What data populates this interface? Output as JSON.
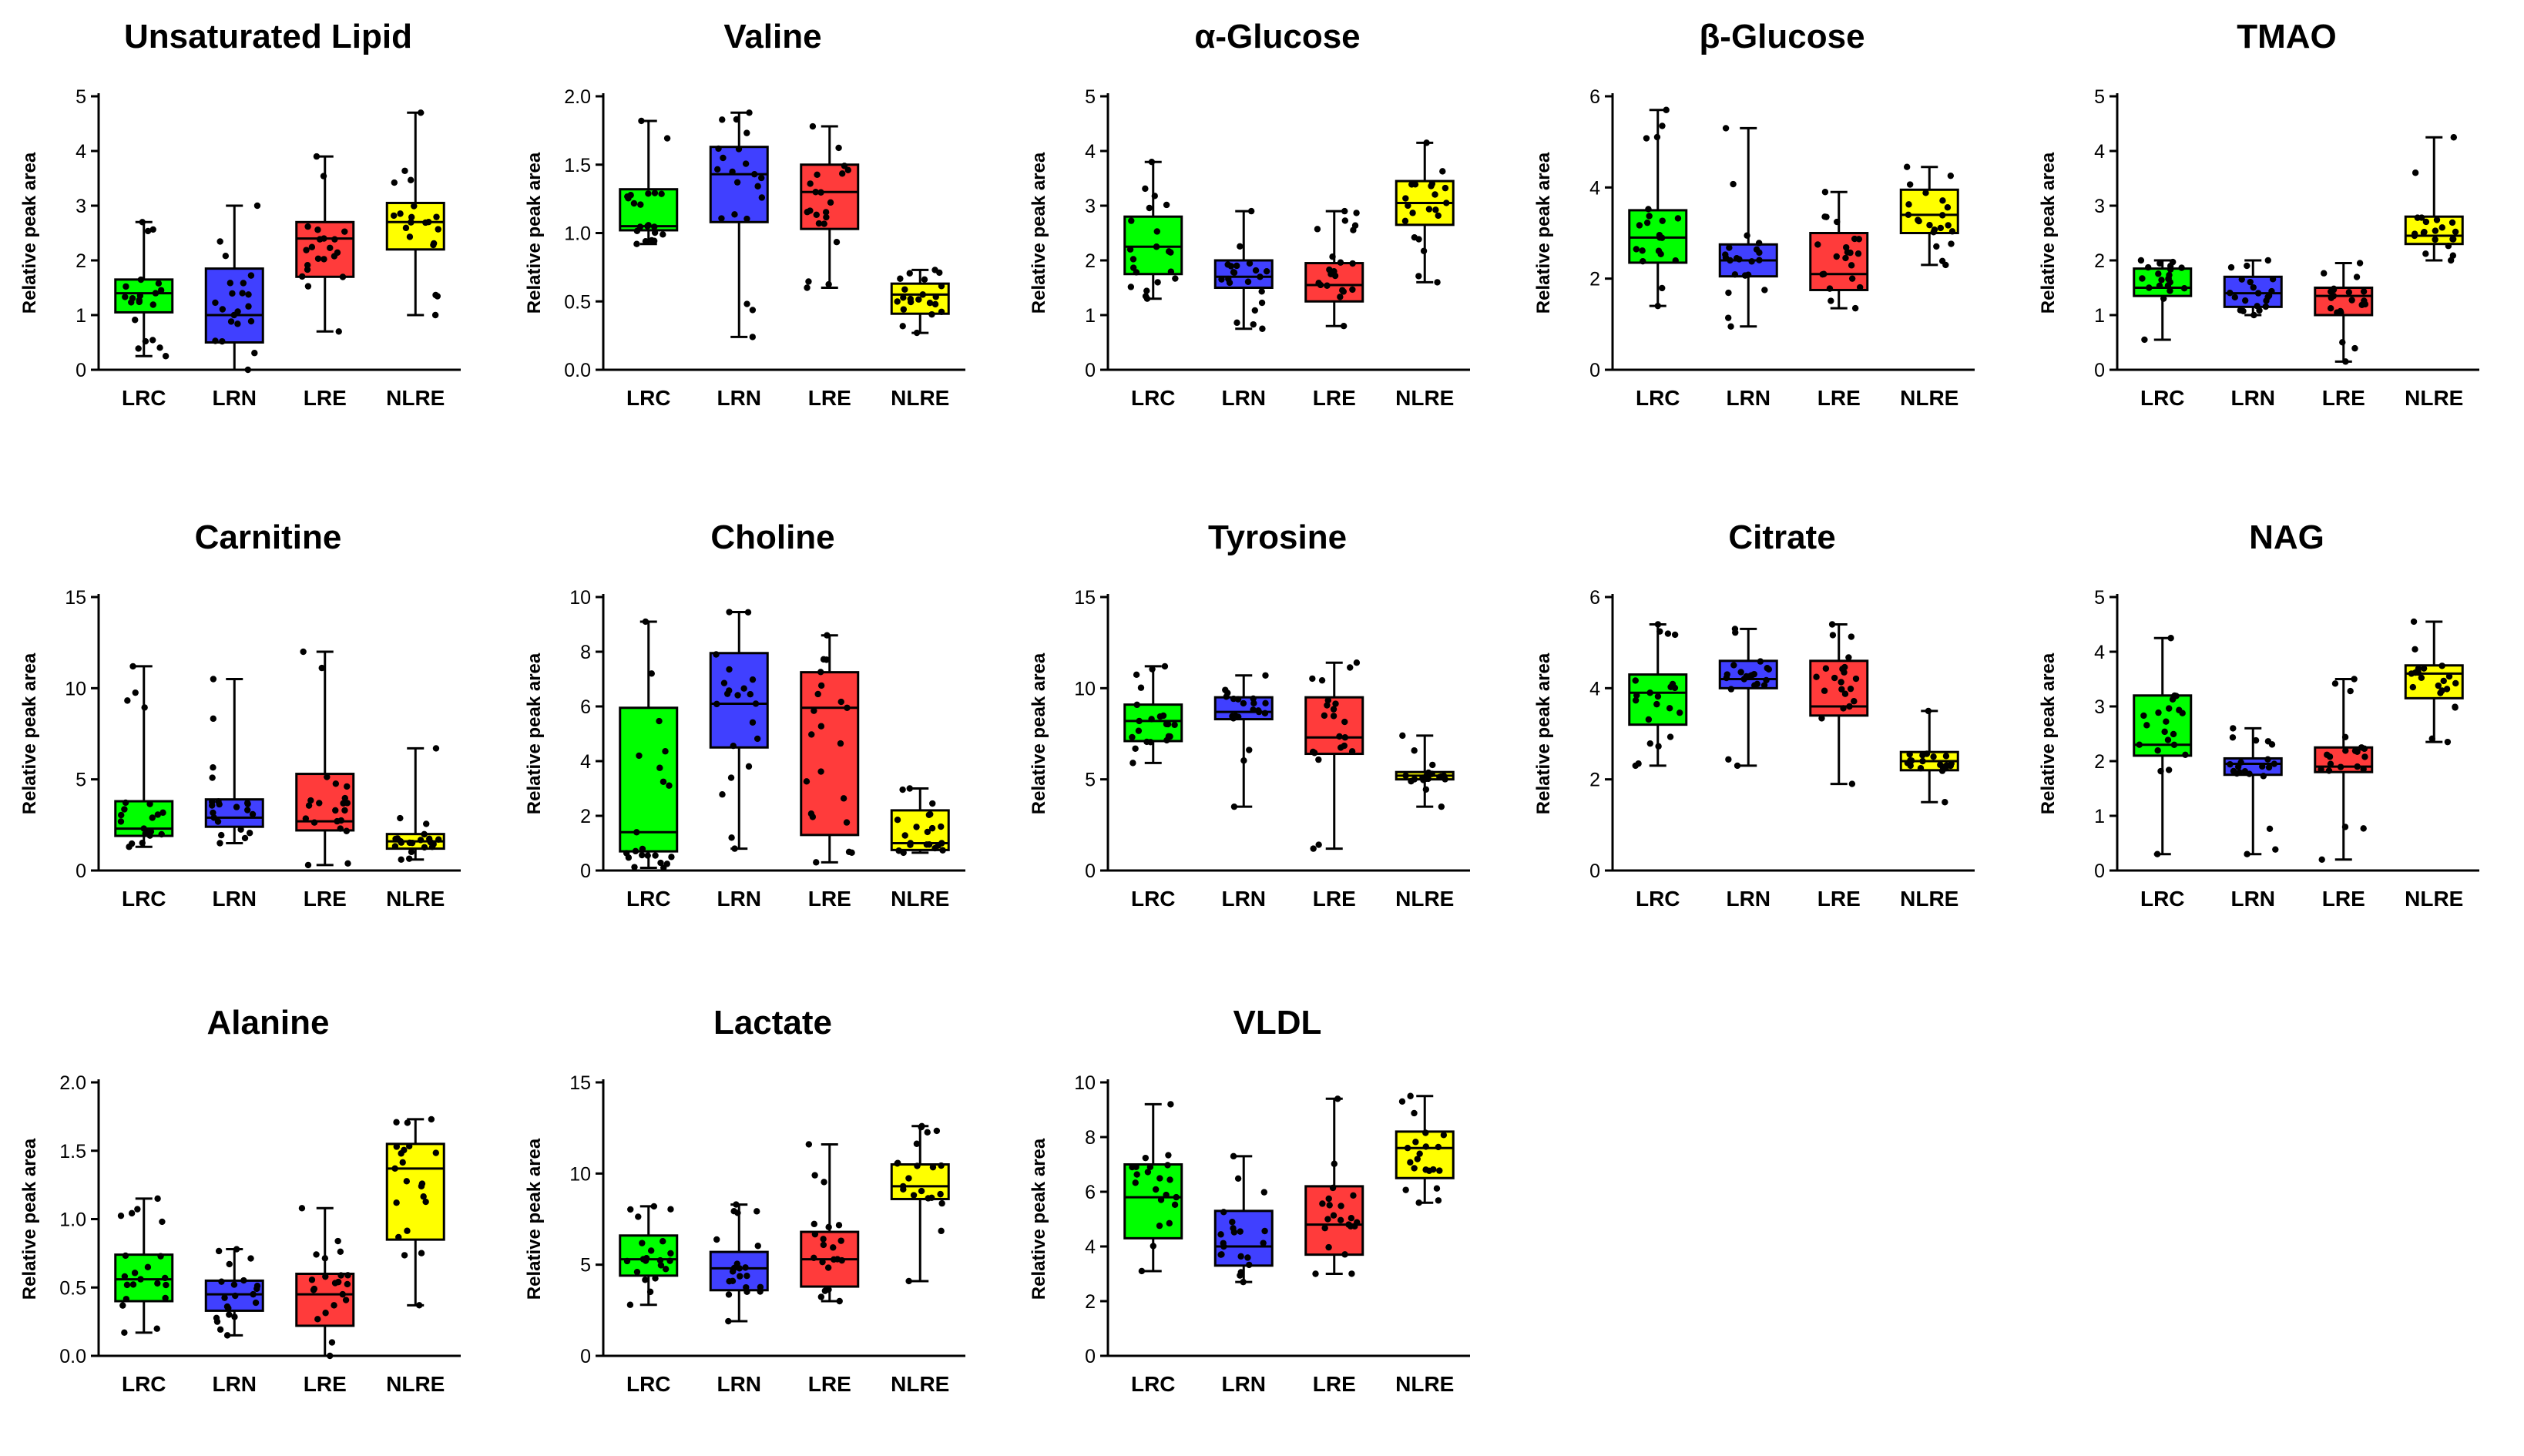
{
  "figure": {
    "y_axis_label": "Relative peak area",
    "groups": [
      "LRC",
      "LRN",
      "LRE",
      "NLRE"
    ],
    "colors": {
      "LRC": "#00ff00",
      "LRN": "#4040ff",
      "LRE": "#ff3b3b",
      "NLRE": "#ffff00"
    }
  },
  "chart_data": [
    {
      "type": "box",
      "title": "Unsaturated Lipid",
      "ylabel": "Relative peak area",
      "ylim": [
        0,
        5
      ],
      "yticks": [
        0,
        1,
        2,
        3,
        4,
        5
      ],
      "categories": [
        "LRC",
        "LRN",
        "LRE",
        "NLRE"
      ],
      "boxes": [
        {
          "min": 0.25,
          "q1": 1.05,
          "median": 1.4,
          "q3": 1.65,
          "max": 2.7
        },
        {
          "min": 0.0,
          "q1": 0.5,
          "median": 1.0,
          "q3": 1.85,
          "max": 3.0
        },
        {
          "min": 0.7,
          "q1": 1.7,
          "median": 2.4,
          "q3": 2.7,
          "max": 3.9
        },
        {
          "min": 1.0,
          "q1": 2.2,
          "median": 2.7,
          "q3": 3.05,
          "max": 4.7
        }
      ]
    },
    {
      "type": "box",
      "title": "Valine",
      "ylabel": "Relative peak area",
      "ylim": [
        0,
        2
      ],
      "yticks": [
        0.0,
        0.5,
        1.0,
        1.5,
        2.0
      ],
      "categories": [
        "LRC",
        "LRN",
        "LRE",
        "NLRE"
      ],
      "boxes": [
        {
          "min": 0.92,
          "q1": 1.02,
          "median": 1.05,
          "q3": 1.32,
          "max": 1.82
        },
        {
          "min": 0.24,
          "q1": 1.08,
          "median": 1.43,
          "q3": 1.63,
          "max": 1.88
        },
        {
          "min": 0.6,
          "q1": 1.03,
          "median": 1.3,
          "q3": 1.5,
          "max": 1.78
        },
        {
          "min": 0.27,
          "q1": 0.41,
          "median": 0.55,
          "q3": 0.63,
          "max": 0.73
        }
      ]
    },
    {
      "type": "box",
      "title": "α-Glucose",
      "ylabel": "Relative peak area",
      "ylim": [
        0,
        5
      ],
      "yticks": [
        0,
        1,
        2,
        3,
        4,
        5
      ],
      "categories": [
        "LRC",
        "LRN",
        "LRE",
        "NLRE"
      ],
      "boxes": [
        {
          "min": 1.3,
          "q1": 1.75,
          "median": 2.25,
          "q3": 2.8,
          "max": 3.8
        },
        {
          "min": 0.75,
          "q1": 1.5,
          "median": 1.7,
          "q3": 2.0,
          "max": 2.9
        },
        {
          "min": 0.8,
          "q1": 1.25,
          "median": 1.55,
          "q3": 1.95,
          "max": 2.9
        },
        {
          "min": 1.6,
          "q1": 2.65,
          "median": 3.05,
          "q3": 3.45,
          "max": 4.15
        }
      ]
    },
    {
      "type": "box",
      "title": "β-Glucose",
      "ylabel": "Relative peak area",
      "ylim": [
        0,
        6
      ],
      "yticks": [
        0,
        2,
        4,
        6
      ],
      "categories": [
        "LRC",
        "LRN",
        "LRE",
        "NLRE"
      ],
      "boxes": [
        {
          "min": 1.4,
          "q1": 2.35,
          "median": 2.9,
          "q3": 3.5,
          "max": 5.7
        },
        {
          "min": 0.95,
          "q1": 2.05,
          "median": 2.4,
          "q3": 2.75,
          "max": 5.3
        },
        {
          "min": 1.35,
          "q1": 1.75,
          "median": 2.1,
          "q3": 3.0,
          "max": 3.9
        },
        {
          "min": 2.3,
          "q1": 3.0,
          "median": 3.4,
          "q3": 3.95,
          "max": 4.45
        }
      ]
    },
    {
      "type": "box",
      "title": "TMAO",
      "ylabel": "Relative peak area",
      "ylim": [
        0,
        5
      ],
      "yticks": [
        0,
        1,
        2,
        3,
        4,
        5
      ],
      "categories": [
        "LRC",
        "LRN",
        "LRE",
        "NLRE"
      ],
      "boxes": [
        {
          "min": 0.55,
          "q1": 1.35,
          "median": 1.5,
          "q3": 1.85,
          "max": 2.0
        },
        {
          "min": 1.0,
          "q1": 1.15,
          "median": 1.4,
          "q3": 1.7,
          "max": 2.0
        },
        {
          "min": 0.15,
          "q1": 1.0,
          "median": 1.35,
          "q3": 1.5,
          "max": 1.95
        },
        {
          "min": 2.0,
          "q1": 2.3,
          "median": 2.45,
          "q3": 2.8,
          "max": 4.25
        }
      ]
    },
    {
      "type": "box",
      "title": "Carnitine",
      "ylabel": "Relative peak area",
      "ylim": [
        0,
        15
      ],
      "yticks": [
        0,
        5,
        10,
        15
      ],
      "categories": [
        "LRC",
        "LRN",
        "LRE",
        "NLRE"
      ],
      "boxes": [
        {
          "min": 1.3,
          "q1": 1.9,
          "median": 2.3,
          "q3": 3.8,
          "max": 11.2
        },
        {
          "min": 1.5,
          "q1": 2.4,
          "median": 2.9,
          "q3": 3.9,
          "max": 10.5
        },
        {
          "min": 0.3,
          "q1": 2.2,
          "median": 2.7,
          "q3": 5.3,
          "max": 12.0
        },
        {
          "min": 0.6,
          "q1": 1.2,
          "median": 1.6,
          "q3": 2.0,
          "max": 6.7
        }
      ]
    },
    {
      "type": "box",
      "title": "Choline",
      "ylabel": "Relative peak area",
      "ylim": [
        0,
        10
      ],
      "yticks": [
        0,
        2,
        4,
        6,
        8,
        10
      ],
      "categories": [
        "LRC",
        "LRN",
        "LRE",
        "NLRE"
      ],
      "boxes": [
        {
          "min": 0.1,
          "q1": 0.7,
          "median": 1.4,
          "q3": 5.95,
          "max": 9.1
        },
        {
          "min": 0.8,
          "q1": 4.5,
          "median": 6.1,
          "q3": 7.95,
          "max": 9.45
        },
        {
          "min": 0.3,
          "q1": 1.3,
          "median": 5.95,
          "q3": 7.25,
          "max": 8.6
        },
        {
          "min": 0.65,
          "q1": 0.75,
          "median": 1.0,
          "q3": 2.2,
          "max": 3.0
        }
      ]
    },
    {
      "type": "box",
      "title": "Tyrosine",
      "ylabel": "Relative peak area",
      "ylim": [
        0,
        15
      ],
      "yticks": [
        0,
        5,
        10,
        15
      ],
      "categories": [
        "LRC",
        "LRN",
        "LRE",
        "NLRE"
      ],
      "boxes": [
        {
          "min": 5.9,
          "q1": 7.1,
          "median": 8.2,
          "q3": 9.1,
          "max": 11.2
        },
        {
          "min": 3.5,
          "q1": 8.3,
          "median": 8.7,
          "q3": 9.5,
          "max": 10.7
        },
        {
          "min": 1.2,
          "q1": 6.4,
          "median": 7.3,
          "q3": 9.5,
          "max": 11.4
        },
        {
          "min": 3.5,
          "q1": 5.0,
          "median": 5.2,
          "q3": 5.4,
          "max": 7.4
        }
      ]
    },
    {
      "type": "box",
      "title": "Citrate",
      "ylabel": "Relative peak area",
      "ylim": [
        0,
        6
      ],
      "yticks": [
        0,
        2,
        4,
        6
      ],
      "categories": [
        "LRC",
        "LRN",
        "LRE",
        "NLRE"
      ],
      "boxes": [
        {
          "min": 2.3,
          "q1": 3.2,
          "median": 3.9,
          "q3": 4.3,
          "max": 5.4
        },
        {
          "min": 2.3,
          "q1": 4.0,
          "median": 4.2,
          "q3": 4.6,
          "max": 5.3
        },
        {
          "min": 1.9,
          "q1": 3.4,
          "median": 3.6,
          "q3": 4.6,
          "max": 5.4
        },
        {
          "min": 1.5,
          "q1": 2.2,
          "median": 2.4,
          "q3": 2.6,
          "max": 3.5
        }
      ]
    },
    {
      "type": "box",
      "title": "NAG",
      "ylabel": "Relative peak area",
      "ylim": [
        0,
        5
      ],
      "yticks": [
        0,
        1,
        2,
        3,
        4,
        5
      ],
      "categories": [
        "LRC",
        "LRN",
        "LRE",
        "NLRE"
      ],
      "boxes": [
        {
          "min": 0.3,
          "q1": 2.1,
          "median": 2.3,
          "q3": 3.2,
          "max": 4.25
        },
        {
          "min": 0.3,
          "q1": 1.75,
          "median": 1.95,
          "q3": 2.05,
          "max": 2.6
        },
        {
          "min": 0.2,
          "q1": 1.8,
          "median": 1.9,
          "q3": 2.25,
          "max": 3.5
        },
        {
          "min": 2.35,
          "q1": 3.15,
          "median": 3.6,
          "q3": 3.75,
          "max": 4.55
        }
      ]
    },
    {
      "type": "box",
      "title": "Alanine",
      "ylabel": "Relative peak area",
      "ylim": [
        0,
        2
      ],
      "yticks": [
        0.0,
        0.5,
        1.0,
        1.5,
        2.0
      ],
      "categories": [
        "LRC",
        "LRN",
        "LRE",
        "NLRE"
      ],
      "boxes": [
        {
          "min": 0.17,
          "q1": 0.4,
          "median": 0.56,
          "q3": 0.74,
          "max": 1.15
        },
        {
          "min": 0.15,
          "q1": 0.33,
          "median": 0.45,
          "q3": 0.55,
          "max": 0.78
        },
        {
          "min": 0.0,
          "q1": 0.22,
          "median": 0.45,
          "q3": 0.6,
          "max": 1.08
        },
        {
          "min": 0.37,
          "q1": 0.85,
          "median": 1.37,
          "q3": 1.55,
          "max": 1.73
        }
      ]
    },
    {
      "type": "box",
      "title": "Lactate",
      "ylabel": "Relative peak area",
      "ylim": [
        0,
        15
      ],
      "yticks": [
        0,
        5,
        10,
        15
      ],
      "categories": [
        "LRC",
        "LRN",
        "LRE",
        "NLRE"
      ],
      "boxes": [
        {
          "min": 2.8,
          "q1": 4.4,
          "median": 5.3,
          "q3": 6.6,
          "max": 8.2
        },
        {
          "min": 1.9,
          "q1": 3.6,
          "median": 4.8,
          "q3": 5.7,
          "max": 8.3
        },
        {
          "min": 3.0,
          "q1": 3.8,
          "median": 5.3,
          "q3": 6.8,
          "max": 11.6
        },
        {
          "min": 4.1,
          "q1": 8.6,
          "median": 9.3,
          "q3": 10.5,
          "max": 12.6
        }
      ]
    },
    {
      "type": "box",
      "title": "VLDL",
      "ylabel": "Relative peak area",
      "ylim": [
        0,
        10
      ],
      "yticks": [
        0,
        2,
        4,
        6,
        8,
        10
      ],
      "categories": [
        "LRC",
        "LRN",
        "LRE",
        "NLRE"
      ],
      "boxes": [
        {
          "min": 3.1,
          "q1": 4.3,
          "median": 5.8,
          "q3": 7.0,
          "max": 9.2
        },
        {
          "min": 2.7,
          "q1": 3.3,
          "median": 4.0,
          "q3": 5.3,
          "max": 7.3
        },
        {
          "min": 3.0,
          "q1": 3.7,
          "median": 4.8,
          "q3": 6.2,
          "max": 9.4
        },
        {
          "min": 5.6,
          "q1": 6.5,
          "median": 7.6,
          "q3": 8.2,
          "max": 9.5
        }
      ]
    }
  ]
}
